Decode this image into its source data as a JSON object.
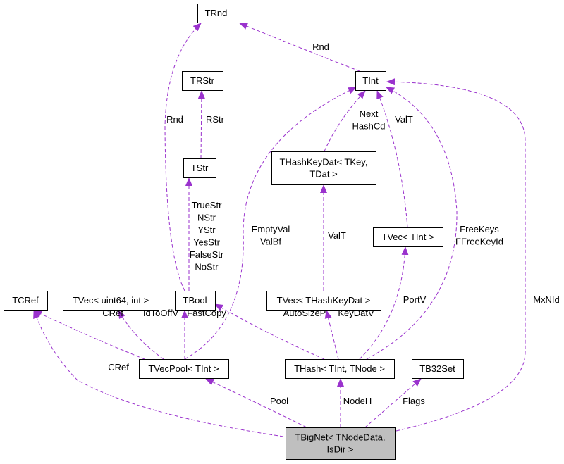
{
  "diagram": {
    "colors": {
      "edge": "#9a32cd",
      "node_fill": "#ffffff",
      "focus_fill": "#bfbfbf",
      "node_border": "#000000"
    },
    "nodes": [
      {
        "id": "trnd",
        "lines": [
          "TRnd"
        ]
      },
      {
        "id": "trstr",
        "lines": [
          "TRStr"
        ]
      },
      {
        "id": "tint",
        "lines": [
          "TInt"
        ]
      },
      {
        "id": "tstr",
        "lines": [
          "TStr"
        ]
      },
      {
        "id": "thashkeydat",
        "lines": [
          "THashKeyDat< TKey,",
          "TDat >"
        ]
      },
      {
        "id": "tvec-tint",
        "lines": [
          "TVec< TInt >"
        ]
      },
      {
        "id": "tcref",
        "lines": [
          "TCRef"
        ]
      },
      {
        "id": "tvec-uint64",
        "lines": [
          "TVec< uint64, int >"
        ]
      },
      {
        "id": "tbool",
        "lines": [
          "TBool"
        ]
      },
      {
        "id": "tvec-thashkeydat",
        "lines": [
          "TVec< THashKeyDat >"
        ]
      },
      {
        "id": "tvecpool",
        "lines": [
          "TVecPool< TInt >"
        ]
      },
      {
        "id": "thash",
        "lines": [
          "THash< TInt, TNode >"
        ]
      },
      {
        "id": "tb32set",
        "lines": [
          "TB32Set"
        ]
      },
      {
        "id": "tbignet",
        "lines": [
          "TBigNet< TNodeData,",
          "IsDir >"
        ],
        "focus": true
      }
    ],
    "edges": [
      {
        "from": "tint",
        "to": "trnd",
        "labels": [
          "Rnd"
        ]
      },
      {
        "from": "tbool",
        "to": "trnd",
        "labels": [
          "Rnd"
        ]
      },
      {
        "from": "tstr",
        "to": "trstr",
        "labels": [
          "RStr"
        ]
      },
      {
        "from": "tbool",
        "to": "tstr",
        "labels": [
          "TrueStr",
          "NStr",
          "YStr",
          "YesStr",
          "FalseStr",
          "NoStr"
        ]
      },
      {
        "from": "tvecpool",
        "to": "tint",
        "labels": [
          "EmptyVal",
          "ValBf"
        ]
      },
      {
        "from": "thashkeydat",
        "to": "tint",
        "labels": [
          "Next",
          "HashCd"
        ]
      },
      {
        "from": "tvec-tint",
        "to": "tint",
        "labels": [
          "ValT"
        ]
      },
      {
        "from": "thash",
        "to": "tint",
        "labels": [
          "FreeKeys",
          "FFreeKeyId"
        ]
      },
      {
        "from": "tbignet",
        "to": "tint",
        "labels": [
          "MxNId"
        ]
      },
      {
        "from": "tvec-thashkeydat",
        "to": "thashkeydat",
        "labels": [
          "ValT"
        ]
      },
      {
        "from": "tvecpool",
        "to": "tcref",
        "labels": [
          "CRef"
        ]
      },
      {
        "from": "tvecpool",
        "to": "tvec-uint64",
        "labels": [
          "IdToOffV"
        ]
      },
      {
        "from": "tvecpool",
        "to": "tbool",
        "labels": [
          "FastCopy"
        ]
      },
      {
        "from": "thash",
        "to": "tbool",
        "labels": [
          "AutoSizeP"
        ]
      },
      {
        "from": "thash",
        "to": "tvec-thashkeydat",
        "labels": [
          "KeyDatV"
        ]
      },
      {
        "from": "thash",
        "to": "tvec-tint",
        "labels": [
          "PortV"
        ]
      },
      {
        "from": "tbignet",
        "to": "tcref",
        "labels": [
          "CRef"
        ]
      },
      {
        "from": "tbignet",
        "to": "tvecpool",
        "labels": [
          "Pool"
        ]
      },
      {
        "from": "tbignet",
        "to": "thash",
        "labels": [
          "NodeH"
        ]
      },
      {
        "from": "tbignet",
        "to": "tb32set",
        "labels": [
          "Flags"
        ]
      }
    ]
  }
}
